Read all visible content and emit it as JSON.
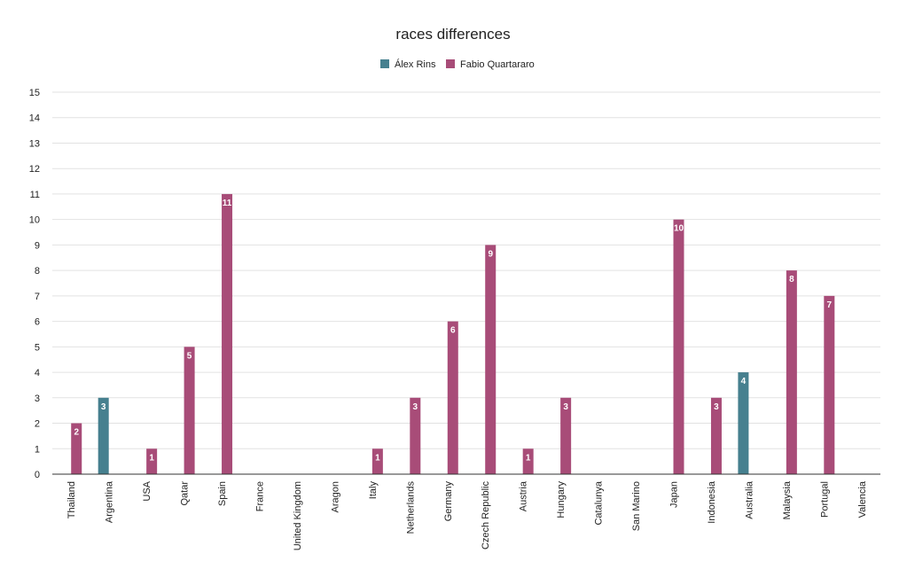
{
  "chart_data": {
    "type": "bar",
    "title": "races differences",
    "xlabel": "",
    "ylabel": "",
    "ylim": [
      0,
      15
    ],
    "yticks": [
      0,
      1,
      2,
      3,
      4,
      5,
      6,
      7,
      8,
      9,
      10,
      11,
      12,
      13,
      14,
      15
    ],
    "grid": true,
    "legend_position": "top",
    "categories": [
      "Thailand",
      "Argentina",
      "USA",
      "Qatar",
      "Spain",
      "France",
      "United Kingdom",
      "Aragon",
      "Italy",
      "Netherlands",
      "Germany",
      "Czech Republic",
      "Austria",
      "Hungary",
      "Catalunya",
      "San Marino",
      "Japan",
      "Indonesia",
      "Australia",
      "Malaysia",
      "Portugal",
      "Valencia"
    ],
    "series": [
      {
        "name": "Álex Rins",
        "color": "#46808f",
        "values": [
          null,
          3,
          null,
          null,
          null,
          null,
          null,
          null,
          null,
          null,
          null,
          null,
          null,
          null,
          null,
          null,
          null,
          null,
          4,
          null,
          null,
          null
        ]
      },
      {
        "name": "Fabio Quartararo",
        "color": "#a84c78",
        "values": [
          2,
          null,
          1,
          5,
          11,
          null,
          null,
          null,
          1,
          3,
          6,
          9,
          1,
          3,
          null,
          null,
          10,
          3,
          null,
          8,
          7,
          null
        ]
      }
    ]
  }
}
